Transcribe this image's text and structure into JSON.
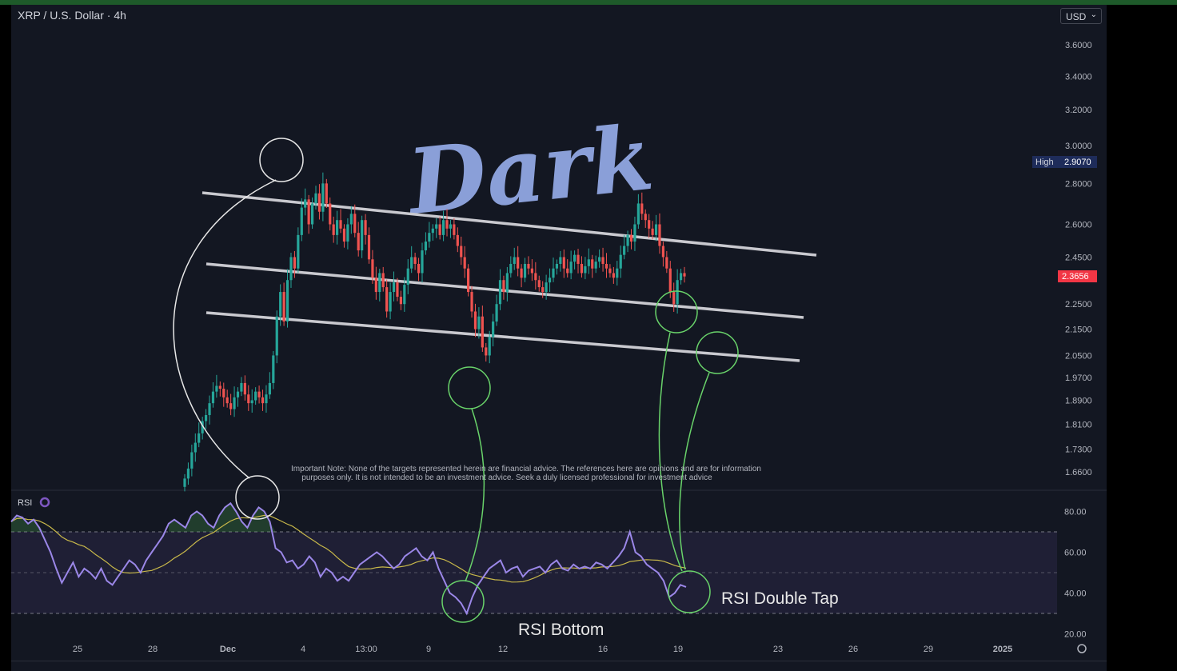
{
  "header": {
    "symbol": "XRP / U.S. Dollar · 4h",
    "currency": "USD"
  },
  "colors": {
    "up": "#26a69a",
    "down": "#ef5350",
    "rsi": "#9b87e8",
    "rsi_ma": "#c8b84a",
    "annotation_green": "#69d36a",
    "price_tag": "#f23645",
    "high_tag": "#1e2c5a"
  },
  "watermark": {
    "text": "Dark"
  },
  "note": {
    "line1": "Important Note: None of the targets represented herein are financial advice. The references here are opinions and are for information",
    "line2": "purposes only. It is not intended to be an investment advice. Seek a duly licensed professional for investment advice"
  },
  "annotations": {
    "rsi_bottom": "RSI Bottom",
    "rsi_double_tap": "RSI Double Tap"
  },
  "rsi_label": "RSI",
  "chart_data": {
    "type": "candlestick",
    "price_axis": {
      "ticks": [
        "3.6000",
        "3.4000",
        "3.2000",
        "3.0000",
        "2.8000",
        "2.6000",
        "2.4500",
        "2.2500",
        "2.1500",
        "2.0500",
        "1.9700",
        "1.8900",
        "1.8100",
        "1.7300",
        "1.6600"
      ],
      "scale": "log"
    },
    "high_tag": {
      "label": "High",
      "value": "2.9070"
    },
    "last_price": "2.3656",
    "x_axis_ticks": [
      "25",
      "28",
      "Dec",
      "4",
      "13:00",
      "9",
      "12",
      "16",
      "19",
      "23",
      "26",
      "29",
      "2025"
    ],
    "closes": [
      1.64,
      1.67,
      1.72,
      1.75,
      1.78,
      1.82,
      1.84,
      1.88,
      1.92,
      1.94,
      1.93,
      1.9,
      1.88,
      1.86,
      1.9,
      1.92,
      1.95,
      1.91,
      1.88,
      1.89,
      1.92,
      1.9,
      1.88,
      1.91,
      1.95,
      2.05,
      2.2,
      2.3,
      2.18,
      2.35,
      2.45,
      2.4,
      2.55,
      2.68,
      2.72,
      2.6,
      2.7,
      2.75,
      2.66,
      2.8,
      2.7,
      2.6,
      2.55,
      2.62,
      2.58,
      2.52,
      2.6,
      2.65,
      2.56,
      2.48,
      2.62,
      2.55,
      2.44,
      2.36,
      2.3,
      2.38,
      2.32,
      2.22,
      2.3,
      2.34,
      2.28,
      2.25,
      2.33,
      2.4,
      2.45,
      2.42,
      2.38,
      2.48,
      2.52,
      2.56,
      2.58,
      2.6,
      2.55,
      2.62,
      2.58,
      2.6,
      2.55,
      2.5,
      2.45,
      2.4,
      2.3,
      2.22,
      2.15,
      2.2,
      2.08,
      2.05,
      2.12,
      2.18,
      2.25,
      2.35,
      2.3,
      2.38,
      2.42,
      2.45,
      2.4,
      2.36,
      2.42,
      2.4,
      2.38,
      2.35,
      2.32,
      2.3,
      2.34,
      2.36,
      2.4,
      2.42,
      2.45,
      2.4,
      2.38,
      2.43,
      2.46,
      2.42,
      2.38,
      2.41,
      2.44,
      2.4,
      2.43,
      2.45,
      2.42,
      2.4,
      2.38,
      2.36,
      2.4,
      2.46,
      2.5,
      2.55,
      2.52,
      2.6,
      2.7,
      2.65,
      2.62,
      2.58,
      2.55,
      2.6,
      2.5,
      2.45,
      2.4,
      2.3,
      2.25,
      2.35,
      2.38,
      2.3656
    ],
    "rsi": [
      75,
      78,
      77,
      74,
      76,
      72,
      66,
      60,
      52,
      45,
      50,
      55,
      48,
      52,
      50,
      47,
      52,
      46,
      44,
      48,
      52,
      56,
      54,
      50,
      56,
      60,
      64,
      68,
      74,
      76,
      74,
      72,
      78,
      80,
      78,
      74,
      72,
      78,
      82,
      84,
      80,
      75,
      72,
      78,
      82,
      80,
      75,
      62,
      60,
      55,
      56,
      52,
      54,
      58,
      55,
      48,
      52,
      50,
      46,
      48,
      46,
      50,
      54,
      56,
      58,
      60,
      58,
      55,
      52,
      54,
      58,
      60,
      62,
      58,
      56,
      60,
      52,
      46,
      40,
      38,
      35,
      30,
      38,
      44,
      48,
      52,
      54,
      56,
      50,
      52,
      53,
      48,
      51,
      52,
      53,
      50,
      54,
      56,
      52,
      51,
      54,
      52,
      53,
      52,
      55,
      54,
      52,
      55,
      58,
      62,
      70,
      60,
      58,
      54,
      52,
      50,
      46,
      38,
      40,
      44,
      43
    ],
    "rsi_axis_ticks": [
      "80.00",
      "60.00",
      "40.00",
      "20.00"
    ],
    "rsi_bands": {
      "upper": 70,
      "middle": 50,
      "lower": 30
    }
  }
}
